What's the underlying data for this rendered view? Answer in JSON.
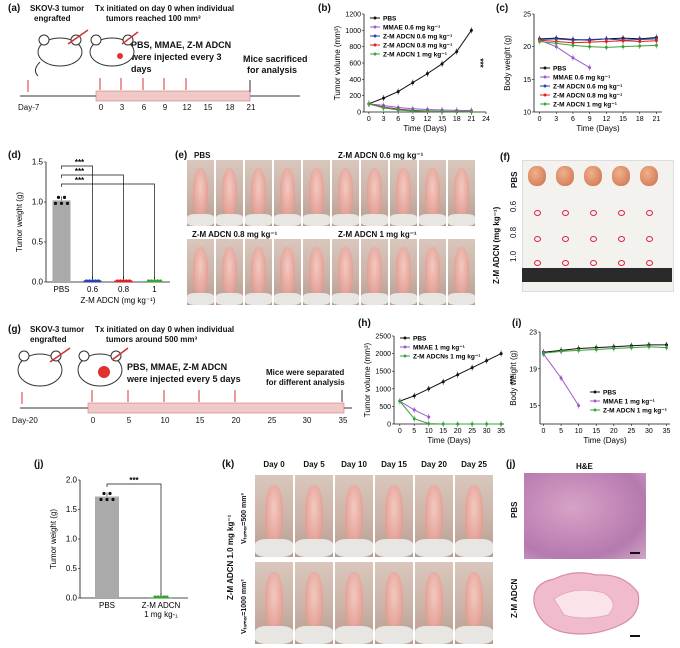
{
  "panel_labels": {
    "a": "(a)",
    "b": "(b)",
    "c": "(c)",
    "d": "(d)",
    "e": "(e)",
    "f": "(f)",
    "g": "(g)",
    "h": "(h)",
    "i": "(i)",
    "j1": "(j)",
    "k": "(k)",
    "j2": "(j)"
  },
  "schematic_a": {
    "line1": "SKOV-3 tumor",
    "line2": "engrafted",
    "tx1": "Tx initiated on day 0 when individual",
    "tx2": "tumors reached 100 mm³",
    "inj1": "PBS, MMAE, Z-M ADCN",
    "inj2": "were injected every 3",
    "inj3": "days",
    "sac1": "Mice sacrificed",
    "sac2": "for analysis",
    "day_start": "Day-7",
    "ticks": [
      "0",
      "3",
      "6",
      "9",
      "12",
      "15",
      "18",
      "21"
    ]
  },
  "schematic_g": {
    "line1": "SKOV-3 tumor",
    "line2": "engrafted",
    "tx1": "Tx initiated on day 0 when individual",
    "tx2": "tumors around 500 mm³",
    "inj1": "PBS, MMAE, Z-M ADCN",
    "inj2": "were injected every 5 days",
    "sep1": "Mice were separated",
    "sep2": "for different analysis",
    "day_start": "Day-20",
    "ticks": [
      "0",
      "5",
      "10",
      "15",
      "20",
      "25",
      "30",
      "35"
    ]
  },
  "chart_data": [
    {
      "id": "b",
      "type": "line",
      "xlabel": "Time (Days)",
      "ylabel": "Tumor volume (mm³)",
      "x": [
        0,
        3,
        6,
        9,
        12,
        15,
        18,
        21
      ],
      "xticks": [
        "0",
        "3",
        "6",
        "9",
        "12",
        "15",
        "18",
        "21",
        "24"
      ],
      "yticks": [
        "0",
        "200",
        "400",
        "600",
        "800",
        "1000",
        "1200"
      ],
      "ylim": [
        0,
        1200
      ],
      "xlim": [
        -1,
        24
      ],
      "significance": "***",
      "series": [
        {
          "name": "PBS",
          "color": "#111111",
          "values": [
            100,
            170,
            250,
            360,
            470,
            590,
            740,
            1000
          ]
        },
        {
          "name": "MMAE 0.6 mg kg⁻¹",
          "color": "#9b59d0",
          "values": [
            100,
            80,
            55,
            40,
            30,
            25,
            20,
            18
          ]
        },
        {
          "name": "Z-M ADCN 0.6 mg kg⁻¹",
          "color": "#2c3fb0",
          "values": [
            100,
            60,
            35,
            20,
            12,
            8,
            6,
            5
          ]
        },
        {
          "name": "Z-M ADCN 0.8 mg kg⁻¹",
          "color": "#e02020",
          "values": [
            100,
            55,
            30,
            15,
            10,
            6,
            4,
            3
          ]
        },
        {
          "name": "Z-M ADCN 1 mg kg⁻¹",
          "color": "#3aa23a",
          "values": [
            100,
            50,
            25,
            12,
            8,
            5,
            3,
            2
          ]
        }
      ]
    },
    {
      "id": "c",
      "type": "line",
      "xlabel": "Time (Days)",
      "ylabel": "Body weight (g)",
      "x": [
        0,
        3,
        6,
        9,
        12,
        15,
        18,
        21
      ],
      "xticks": [
        "0",
        "3",
        "6",
        "9",
        "12",
        "15",
        "18",
        "21"
      ],
      "yticks": [
        "10",
        "15",
        "20",
        "25"
      ],
      "ylim": [
        10,
        25
      ],
      "xlim": [
        -1,
        22
      ],
      "series": [
        {
          "name": "PBS",
          "color": "#111111",
          "values": [
            21.2,
            21.3,
            21.1,
            21.0,
            21.2,
            21.3,
            21.2,
            21.4
          ]
        },
        {
          "name": "MMAE 0.6 mg kg⁻¹",
          "color": "#9b59d0",
          "values": [
            21.0,
            20.0,
            18.3,
            16.8,
            null,
            null,
            null,
            null
          ]
        },
        {
          "name": "Z-M ADCN 0.6 mg kg⁻¹",
          "color": "#2c3fb0",
          "values": [
            21.1,
            21.2,
            21.0,
            21.1,
            21.2,
            21.0,
            21.1,
            21.2
          ]
        },
        {
          "name": "Z-M ADCN 0.8 mg kg⁻¹",
          "color": "#e02020",
          "values": [
            21.0,
            20.8,
            20.6,
            20.7,
            20.8,
            20.9,
            20.8,
            20.9
          ]
        },
        {
          "name": "Z-M ADCN 1 mg kg⁻¹",
          "color": "#3aa23a",
          "values": [
            20.8,
            20.5,
            20.2,
            20.0,
            19.9,
            20.0,
            20.1,
            20.2
          ]
        }
      ]
    },
    {
      "id": "d",
      "type": "bar",
      "ylabel": "Tumor weight (g)",
      "xlabel": "Z-M ADCN (mg kg⁻¹)",
      "categories": [
        "PBS",
        "0.6",
        "0.8",
        "1"
      ],
      "values": [
        1.02,
        0.02,
        0.02,
        0.01
      ],
      "colors": [
        "#aaaaaa",
        "#2c3fb0",
        "#e02020",
        "#3aa23a"
      ],
      "yticks": [
        "0.0",
        "0.5",
        "1.0",
        "1.5"
      ],
      "ylim": [
        0,
        1.5
      ],
      "significance": [
        "***",
        "***",
        "***"
      ]
    },
    {
      "id": "h",
      "type": "line",
      "xlabel": "Time (Days)",
      "ylabel": "Tumor volume (mm³)",
      "x": [
        0,
        5,
        10,
        15,
        20,
        25,
        30,
        35
      ],
      "xticks": [
        "0",
        "5",
        "10",
        "15",
        "20",
        "25",
        "30",
        "35"
      ],
      "yticks": [
        "0",
        "500",
        "1000",
        "1500",
        "2000",
        "2500"
      ],
      "ylim": [
        0,
        2500
      ],
      "xlim": [
        -2,
        36
      ],
      "significance": "***",
      "series": [
        {
          "name": "PBS",
          "color": "#111111",
          "values": [
            650,
            800,
            1000,
            1200,
            1400,
            1600,
            1800,
            2000
          ]
        },
        {
          "name": "MMAE 1 mg kg⁻¹",
          "color": "#9b59d0",
          "values": [
            650,
            400,
            200,
            null,
            null,
            null,
            null,
            null
          ]
        },
        {
          "name": "Z-M ADCNs 1 mg kg⁻¹",
          "color": "#3aa23a",
          "values": [
            650,
            150,
            10,
            0,
            0,
            0,
            0,
            0
          ]
        }
      ]
    },
    {
      "id": "i",
      "type": "line",
      "xlabel": "Time (Days)",
      "ylabel": "Body weight (g)",
      "x": [
        0,
        5,
        10,
        15,
        20,
        25,
        30,
        35
      ],
      "xticks": [
        "0",
        "5",
        "10",
        "15",
        "20",
        "25",
        "30",
        "35"
      ],
      "yticks": [
        "15",
        "19",
        "23"
      ],
      "ylim": [
        13,
        23
      ],
      "xlim": [
        -1,
        36
      ],
      "series": [
        {
          "name": "PBS",
          "color": "#111111",
          "values": [
            20.8,
            21.0,
            21.2,
            21.3,
            21.4,
            21.5,
            21.6,
            21.6
          ]
        },
        {
          "name": "MMAE 1 mg kg⁻¹",
          "color": "#9b59d0",
          "values": [
            20.6,
            18.0,
            15.0,
            null,
            null,
            null,
            null,
            null
          ]
        },
        {
          "name": "Z-M ADCN 1 mg kg⁻¹",
          "color": "#3aa23a",
          "values": [
            20.7,
            20.9,
            21.0,
            21.1,
            21.2,
            21.3,
            21.4,
            21.3
          ]
        }
      ]
    },
    {
      "id": "j1",
      "type": "bar",
      "ylabel": "Tumor weight (g)",
      "categories": [
        "PBS",
        "Z-M ADCN\n1 mg kg-₁"
      ],
      "values": [
        1.72,
        0.01
      ],
      "colors": [
        "#aaaaaa",
        "#3aa23a"
      ],
      "yticks": [
        "0.0",
        "0.5",
        "1.0",
        "1.5",
        "2.0"
      ],
      "ylim": [
        0,
        2.0
      ],
      "significance": [
        "***"
      ]
    }
  ],
  "panel_e": {
    "pbs": "PBS",
    "g06": "Z-M ADCN 0.6 mg kg⁻¹",
    "g08": "Z-M ADCN 0.8 mg kg⁻¹",
    "g1": "Z-M ADCN 1 mg kg⁻¹"
  },
  "panel_f": {
    "pbs": "PBS",
    "axis": "Z-M ADCN (mg kg⁻¹)",
    "rows": [
      "0.6",
      "0.8",
      "1.0"
    ]
  },
  "panel_k": {
    "days": [
      "Day 0",
      "Day 5",
      "Day 10",
      "Day 15",
      "Day 20",
      "Day 25"
    ],
    "side": "Z-M ADCN 1.0 mg kg⁻¹",
    "v500": "Vₜᵤₘₒᵣ=500 mm³",
    "v1000": "Vₜᵤₘₒᵣ=1000 mm³"
  },
  "panel_j2": {
    "title": "H&E",
    "pbs": "PBS",
    "zm": "Z-M ADCN"
  }
}
